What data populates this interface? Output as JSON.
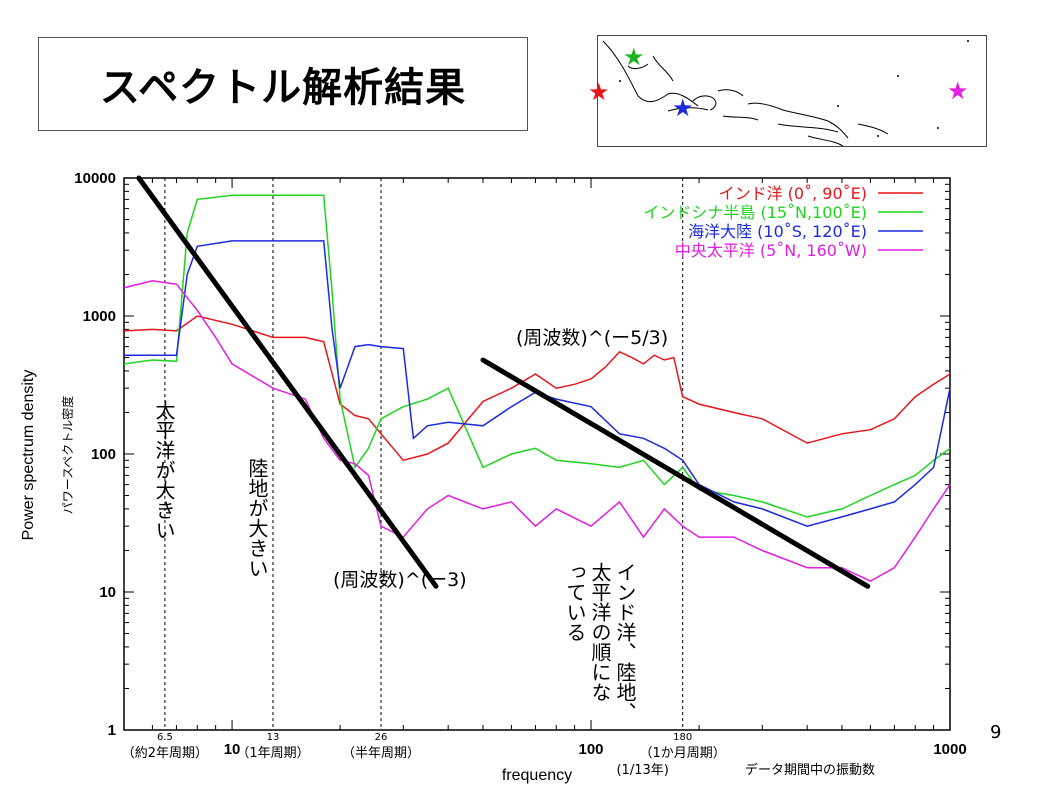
{
  "slide": {
    "title": "スペクトル解析結果",
    "page_number": "9"
  },
  "map": {
    "stars": [
      {
        "name": "indian-ocean",
        "color": "#e8161c"
      },
      {
        "name": "indochina",
        "color": "#1fb31f"
      },
      {
        "name": "maritime-continent",
        "color": "#1c2ae0"
      },
      {
        "name": "central-pacific",
        "color": "#e21ee2"
      }
    ]
  },
  "annotations": {
    "pacific_large": "太平洋が大きい",
    "land_large": "陸地が大きい",
    "slope_minus3": "(周波数)^(ー3)",
    "slope_minus53": "(周波数)^(ー5/3)",
    "order_line1": "インド洋、陸地、",
    "order_line2": "太平洋の順にな",
    "order_line3": "っている",
    "period_65": "6.5",
    "period_65_note": "（約2年周期）",
    "period_13": "13",
    "period_13_note": "（1年周期）",
    "period_26": "26",
    "period_26_note": "（半年周期）",
    "period_180": "180",
    "period_180_note": "（1か月周期）",
    "period_180_note2": "(1/13年)",
    "xnote": "データ期間中の振動数"
  },
  "chart_data": {
    "type": "line",
    "xscale": "log",
    "yscale": "log",
    "xlim": [
      5,
      1000
    ],
    "ylim": [
      1,
      10000
    ],
    "xlabel": "frequency",
    "ylabel": "Power spectrum density",
    "ylabel2": "パワースペクトル密度",
    "xticks": [
      "10",
      "100",
      "1000"
    ],
    "yticks": [
      "1",
      "10",
      "100",
      "1000",
      "10000"
    ],
    "legend_position": "top-right",
    "series": [
      {
        "name": "インド洋 (0˚, 90˚E)",
        "color": "#e8161c",
        "x": [
          5,
          6,
          7,
          8,
          10,
          13,
          16,
          18,
          20,
          22,
          24,
          26,
          30,
          35,
          40,
          50,
          60,
          70,
          80,
          90,
          100,
          110,
          120,
          130,
          140,
          150,
          160,
          170,
          180,
          200,
          250,
          300,
          400,
          500,
          600,
          700,
          800,
          900,
          1000
        ],
        "y": [
          780,
          800,
          780,
          1000,
          870,
          700,
          700,
          650,
          230,
          190,
          180,
          140,
          90,
          100,
          120,
          240,
          300,
          380,
          300,
          320,
          350,
          430,
          550,
          500,
          450,
          520,
          480,
          500,
          260,
          230,
          200,
          180,
          120,
          140,
          150,
          180,
          260,
          320,
          380
        ]
      },
      {
        "name": "インドシナ半島 (15˚N,100˚E)",
        "color": "#1fd41f",
        "x": [
          5,
          6,
          7,
          7.5,
          8,
          10,
          13,
          16,
          18,
          19,
          20,
          22,
          24,
          26,
          30,
          35,
          40,
          50,
          60,
          70,
          80,
          100,
          120,
          140,
          160,
          180,
          200,
          250,
          300,
          400,
          500,
          600,
          700,
          800,
          900,
          1000
        ],
        "y": [
          450,
          480,
          470,
          4000,
          7000,
          7500,
          7500,
          7500,
          7500,
          1500,
          250,
          80,
          110,
          180,
          220,
          250,
          300,
          80,
          100,
          110,
          90,
          85,
          80,
          90,
          60,
          80,
          55,
          50,
          45,
          35,
          40,
          50,
          60,
          70,
          90,
          110
        ]
      },
      {
        "name": "海洋大陸 (10˚S, 120˚E)",
        "color": "#1c2ae0",
        "x": [
          5,
          6,
          7,
          7.5,
          8,
          10,
          13,
          16,
          18,
          19,
          20,
          22,
          24,
          26,
          30,
          32,
          35,
          40,
          50,
          60,
          70,
          80,
          100,
          120,
          140,
          160,
          180,
          200,
          250,
          300,
          400,
          500,
          600,
          700,
          800,
          900,
          1000
        ],
        "y": [
          520,
          520,
          520,
          2000,
          3200,
          3500,
          3500,
          3500,
          3500,
          800,
          300,
          600,
          620,
          600,
          580,
          130,
          160,
          170,
          160,
          220,
          280,
          250,
          220,
          140,
          130,
          110,
          90,
          60,
          45,
          40,
          30,
          35,
          40,
          45,
          60,
          80,
          300
        ]
      },
      {
        "name": "中央太平洋 (5˚N, 160˚W)",
        "color": "#e21ee2",
        "x": [
          5,
          6,
          7,
          8,
          9,
          10,
          13,
          16,
          18,
          20,
          22,
          24,
          26,
          30,
          35,
          40,
          50,
          60,
          70,
          80,
          100,
          120,
          140,
          160,
          180,
          200,
          250,
          300,
          400,
          500,
          600,
          700,
          800,
          900,
          1000
        ],
        "y": [
          1600,
          1800,
          1700,
          1100,
          700,
          450,
          300,
          250,
          130,
          90,
          85,
          70,
          30,
          25,
          40,
          50,
          40,
          45,
          30,
          40,
          30,
          45,
          25,
          40,
          30,
          25,
          25,
          20,
          15,
          15,
          12,
          15,
          25,
          40,
          60
        ]
      }
    ],
    "reference_lines": [
      {
        "label": "(周波数)^(ー3)",
        "x": [
          5.5,
          37
        ],
        "y": [
          10000,
          11
        ]
      },
      {
        "label": "(周波数)^(ー5/3)",
        "x": [
          50,
          590
        ],
        "y": [
          480,
          11
        ]
      }
    ],
    "vertical_markers": [
      6.5,
      13,
      26,
      180
    ]
  }
}
